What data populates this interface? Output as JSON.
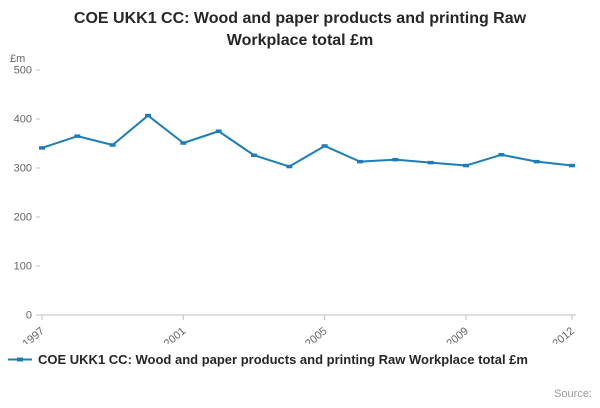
{
  "page": {
    "title": "COE UKK1 CC: Wood and paper products and printing Raw Workplace total £m",
    "source_label": "Source:"
  },
  "legend": {
    "label": "COE UKK1 CC: Wood and paper products and printing Raw Workplace total £m"
  },
  "colors": {
    "series": "#1d7db8",
    "axis_text": "#666666",
    "axis_line": "#c0c0c0",
    "title_text": "#262626",
    "source_text": "#999999"
  },
  "chart_data": {
    "type": "line",
    "title": "COE UKK1 CC: Wood and paper products and printing Raw Workplace total £m",
    "xlabel": "",
    "ylabel": "£m",
    "x": [
      1997,
      1998,
      1999,
      2000,
      2001,
      2002,
      2003,
      2004,
      2005,
      2006,
      2007,
      2008,
      2009,
      2010,
      2011,
      2012
    ],
    "values": [
      341,
      365,
      347,
      407,
      351,
      375,
      326,
      303,
      345,
      313,
      317,
      311,
      305,
      327,
      313,
      305
    ],
    "xlim": [
      1997,
      2012
    ],
    "ylim": [
      0,
      500
    ],
    "yticks": [
      0,
      100,
      200,
      300,
      400,
      500
    ],
    "xticks": [
      1997,
      2001,
      2005,
      2009,
      2012
    ],
    "grid": false,
    "legend_position": "bottom",
    "series_color": "#1d7db8"
  }
}
